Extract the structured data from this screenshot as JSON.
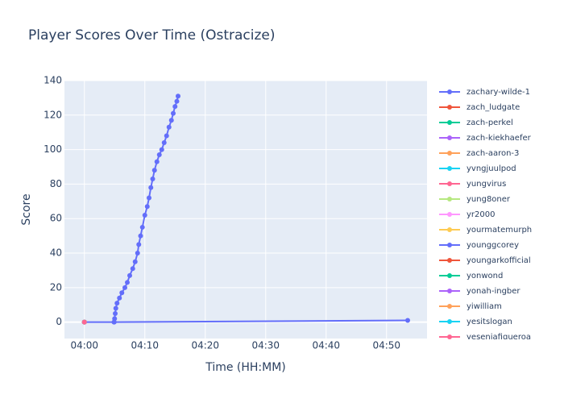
{
  "chart_data": {
    "type": "line",
    "title": "Player Scores Over Time (Ostracize)",
    "x_label": "Time (HH:MM)",
    "y_label": "Score",
    "xlim": [
      236.7,
      296.7
    ],
    "ylim": [
      -9.5,
      140
    ],
    "xticks": [
      {
        "value": 240,
        "label": "04:00"
      },
      {
        "value": 250,
        "label": "04:10"
      },
      {
        "value": 260,
        "label": "04:20"
      },
      {
        "value": 270,
        "label": "04:30"
      },
      {
        "value": 280,
        "label": "04:40"
      },
      {
        "value": 290,
        "label": "04:50"
      }
    ],
    "yticks": [
      0,
      20,
      40,
      60,
      80,
      100,
      120,
      140
    ],
    "grid": true,
    "series": [
      {
        "name": "zachary-wilde-1",
        "color": "#636efa",
        "x": [
          244.93,
          245.0,
          245.1,
          245.2,
          245.4,
          245.8,
          246.2,
          246.7,
          247.1,
          247.5,
          248.0,
          248.4,
          248.8,
          249.0,
          249.3,
          249.6,
          250.0,
          250.4,
          250.7,
          251.0,
          251.3,
          251.6,
          252.0,
          252.4,
          252.8,
          253.2,
          253.6,
          254.0,
          254.4,
          254.7,
          255.0,
          255.3,
          255.5
        ],
        "values": [
          0,
          2,
          5,
          8,
          11,
          14,
          17,
          20,
          23,
          27,
          31,
          35,
          40,
          45,
          50,
          55,
          62,
          67,
          72,
          78,
          83,
          88,
          93,
          97,
          100,
          104,
          108,
          113,
          117,
          121,
          125,
          128,
          131
        ]
      },
      {
        "name": "zach_ludgate",
        "color": "#EF553B",
        "x": [
          240
        ],
        "values": [
          0
        ]
      },
      {
        "name": "zach-perkel",
        "color": "#00cc96",
        "x": [
          240
        ],
        "values": [
          0
        ]
      },
      {
        "name": "zach-kiekhaefer",
        "color": "#ab63fa",
        "x": [
          240
        ],
        "values": [
          0
        ]
      },
      {
        "name": "zach-aaron-3",
        "color": "#FFA15A",
        "x": [
          240
        ],
        "values": [
          0
        ]
      },
      {
        "name": "yvngjuulpod",
        "color": "#19d3f3",
        "x": [
          240
        ],
        "values": [
          0
        ]
      },
      {
        "name": "yungvirus",
        "color": "#FF6692",
        "x": [
          240
        ],
        "values": [
          0
        ]
      },
      {
        "name": "yung8oner",
        "color": "#B6E880",
        "x": [
          240
        ],
        "values": [
          0
        ]
      },
      {
        "name": "yr2000",
        "color": "#FF97FF",
        "x": [
          240
        ],
        "values": [
          0
        ]
      },
      {
        "name": "yourmatemurph",
        "color": "#FECB52",
        "x": [
          240
        ],
        "values": [
          0
        ]
      },
      {
        "name": "younggcorey",
        "color": "#636efa",
        "x": [
          240,
          244.9,
          293.5
        ],
        "values": [
          0,
          0,
          1
        ]
      },
      {
        "name": "youngarkofficial",
        "color": "#EF553B",
        "x": [
          240
        ],
        "values": [
          0
        ]
      },
      {
        "name": "yonwond",
        "color": "#00cc96",
        "x": [
          240
        ],
        "values": [
          0
        ]
      },
      {
        "name": "yonah-ingber",
        "color": "#ab63fa",
        "x": [
          240
        ],
        "values": [
          0
        ]
      },
      {
        "name": "yiwilliam",
        "color": "#FFA15A",
        "x": [
          240
        ],
        "values": [
          0
        ]
      },
      {
        "name": "yesitslogan",
        "color": "#19d3f3",
        "x": [
          240
        ],
        "values": [
          0
        ]
      },
      {
        "name": "yeseniafigueroa",
        "color": "#FF6692",
        "x": [
          240
        ],
        "values": [
          0
        ]
      }
    ]
  }
}
